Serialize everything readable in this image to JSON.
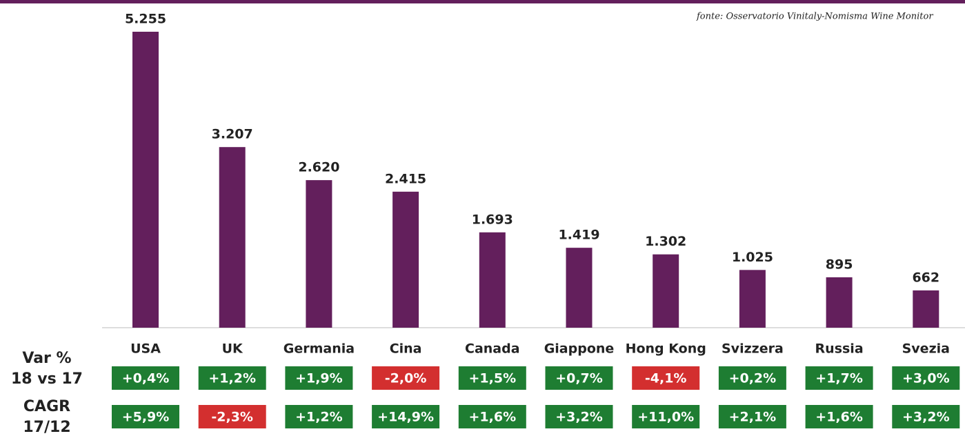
{
  "chart_data": {
    "type": "bar",
    "source": "fonte: Osservatorio Vinitaly-Nomisma Wine Monitor",
    "categories": [
      "USA",
      "UK",
      "Germania",
      "Cina",
      "Canada",
      "Giappone",
      "Hong Kong",
      "Svizzera",
      "Russia",
      "Svezia"
    ],
    "values": [
      5255,
      3207,
      2620,
      2415,
      1693,
      1419,
      1302,
      1025,
      895,
      662
    ],
    "value_labels": [
      "5.255",
      "3.207",
      "2.620",
      "2.415",
      "1.693",
      "1.419",
      "1.302",
      "1.025",
      "895",
      "662"
    ],
    "color": "#631f5c",
    "rows": [
      {
        "label": [
          "Var %",
          "18 vs 17"
        ],
        "values": [
          "+0,4%",
          "+1,2%",
          "+1,9%",
          "-2,0%",
          "+1,5%",
          "+0,7%",
          "-4,1%",
          "+0,2%",
          "+1,7%",
          "+3,0%"
        ]
      },
      {
        "label": [
          "CAGR",
          "17/12"
        ],
        "values": [
          "+5,9%",
          "-2,3%",
          "+1,2%",
          "+14,9%",
          "+1,6%",
          "+3,2%",
          "+11,0%",
          "+2,1%",
          "+1,6%",
          "+3,2%"
        ]
      }
    ],
    "positive_color": "#1e7d32",
    "negative_color": "#d32f2f"
  }
}
